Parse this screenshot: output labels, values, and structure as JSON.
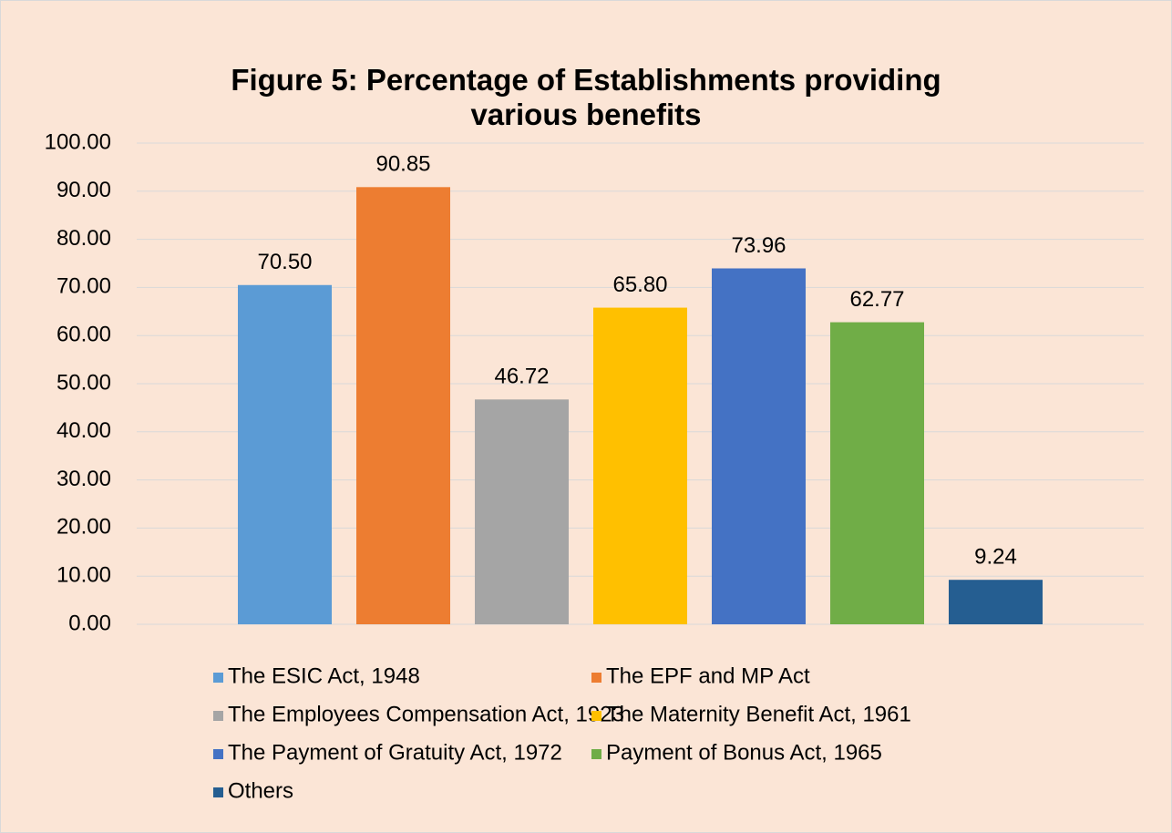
{
  "chart_data": {
    "type": "bar",
    "title": "Figure 5: Percentage of Establishments providing various benefits",
    "categories": [
      null
    ],
    "series": [
      {
        "name": "The ESIC Act, 1948",
        "color": "#5b9bd5",
        "values": [
          70.5
        ],
        "value_labels": [
          "70.50"
        ]
      },
      {
        "name": "The EPF and MP Act",
        "color": "#ed7d31",
        "values": [
          90.85
        ],
        "value_labels": [
          "90.85"
        ]
      },
      {
        "name": "The Employees Compensation Act, 1923",
        "color": "#a5a5a5",
        "values": [
          46.72
        ],
        "value_labels": [
          "46.72"
        ]
      },
      {
        "name": "The Maternity Benefit Act, 1961",
        "color": "#ffc000",
        "values": [
          65.8
        ],
        "value_labels": [
          "65.80"
        ]
      },
      {
        "name": "The Payment of Gratuity Act, 1972",
        "color": "#4472c4",
        "values": [
          73.96
        ],
        "value_labels": [
          "73.96"
        ]
      },
      {
        "name": "Payment of Bonus Act, 1965",
        "color": "#70ad47",
        "values": [
          62.77
        ],
        "value_labels": [
          "62.77"
        ]
      },
      {
        "name": "Others",
        "color": "#255e91",
        "values": [
          9.24
        ],
        "value_labels": [
          "9.24"
        ]
      }
    ],
    "ylim": [
      0,
      100
    ],
    "yticks": [
      {
        "value": 0,
        "label": "0.00"
      },
      {
        "value": 10,
        "label": "10.00"
      },
      {
        "value": 20,
        "label": "20.00"
      },
      {
        "value": 30,
        "label": "30.00"
      },
      {
        "value": 40,
        "label": "40.00"
      },
      {
        "value": 50,
        "label": "50.00"
      },
      {
        "value": 60,
        "label": "60.00"
      },
      {
        "value": 70,
        "label": "70.00"
      },
      {
        "value": 80,
        "label": "80.00"
      },
      {
        "value": 90,
        "label": "90.00"
      },
      {
        "value": 100,
        "label": "100.00"
      }
    ],
    "grid": true,
    "legend": "bottom"
  }
}
